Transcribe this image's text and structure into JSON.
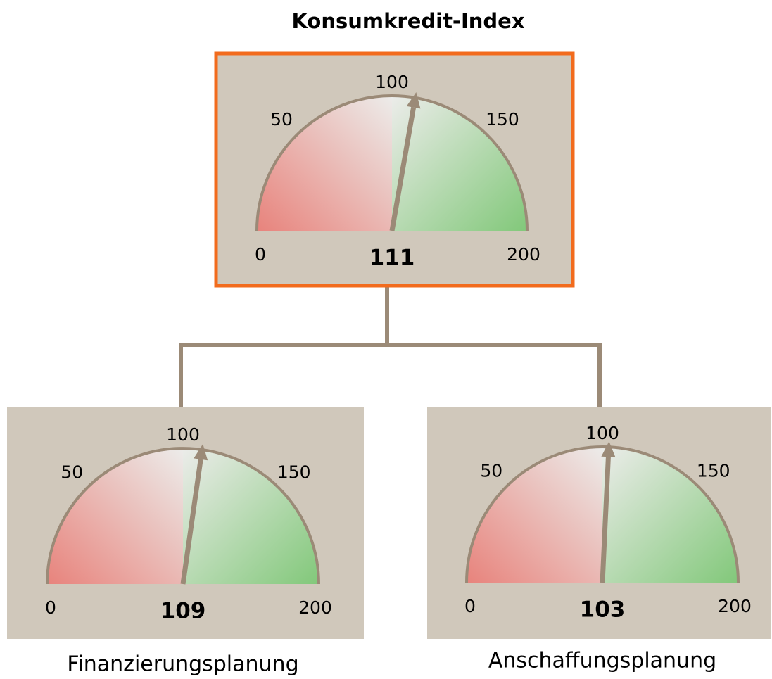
{
  "chart_data": [
    {
      "type": "gauge",
      "title": "Konsumkredit-Index",
      "value": 111,
      "lim": [
        0,
        200
      ],
      "ticks": [
        0,
        50,
        100,
        150,
        200
      ],
      "highlight": true
    },
    {
      "type": "gauge",
      "title": "Finanzierungsplanung",
      "value": 109,
      "lim": [
        0,
        200
      ],
      "ticks": [
        0,
        50,
        100,
        150,
        200
      ]
    },
    {
      "type": "gauge",
      "title": "Anschaffungsplanung",
      "value": 103,
      "lim": [
        0,
        200
      ],
      "ticks": [
        0,
        50,
        100,
        150,
        200
      ]
    }
  ]
}
